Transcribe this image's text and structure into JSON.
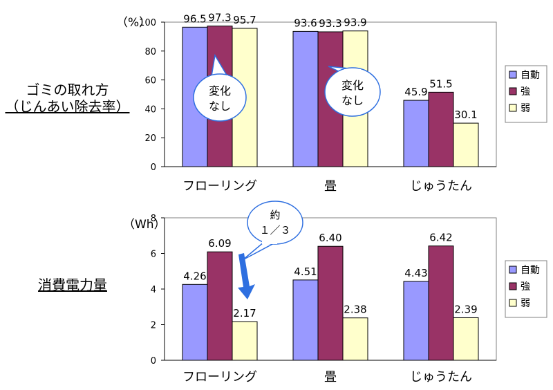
{
  "labels": {
    "top_metric_line1": "ゴミの取れ方",
    "top_metric_line2": "（じんあい除去率）",
    "bottom_metric": "消費電力量"
  },
  "legend": [
    "自動",
    "強",
    "弱"
  ],
  "colors": {
    "auto": "#9999FF",
    "strong": "#993366",
    "weak": "#FFFFCC",
    "arrow": "#2E6FE0"
  },
  "callouts": {
    "top_1": [
      "変化",
      "なし"
    ],
    "top_2": [
      "変化",
      "なし"
    ],
    "bottom": [
      "約",
      "１／３"
    ]
  },
  "chart_data": [
    {
      "type": "bar",
      "unit_label": "（%）",
      "categories": [
        "フローリング",
        "畳",
        "じゅうたん"
      ],
      "series": [
        {
          "name": "自動",
          "values": [
            96.5,
            93.6,
            45.9
          ]
        },
        {
          "name": "強",
          "values": [
            97.3,
            93.3,
            51.5
          ]
        },
        {
          "name": "弱",
          "values": [
            95.7,
            93.9,
            30.1
          ]
        }
      ],
      "value_labels": [
        [
          "96.5",
          "97.3",
          "95.7"
        ],
        [
          "93.6",
          "93.3",
          "93.9"
        ],
        [
          "45.9",
          "51.5",
          "30.1"
        ]
      ],
      "ylim": [
        0,
        100
      ],
      "yticks": [
        0,
        20,
        40,
        60,
        80,
        100
      ],
      "grid": false,
      "legend_position": "right"
    },
    {
      "type": "bar",
      "unit_label": "（Wh）",
      "categories": [
        "フローリング",
        "畳",
        "じゅうたん"
      ],
      "series": [
        {
          "name": "自動",
          "values": [
            4.26,
            4.51,
            4.43
          ]
        },
        {
          "name": "強",
          "values": [
            6.09,
            6.4,
            6.42
          ]
        },
        {
          "name": "弱",
          "values": [
            2.17,
            2.38,
            2.39
          ]
        }
      ],
      "value_labels": [
        [
          "4.26",
          "6.09",
          "2.17"
        ],
        [
          "4.51",
          "6.40",
          "2.38"
        ],
        [
          "4.43",
          "6.42",
          "2.39"
        ]
      ],
      "ylim": [
        0,
        8
      ],
      "yticks": [
        0,
        2,
        4,
        6,
        8
      ],
      "grid": false,
      "legend_position": "right"
    }
  ]
}
